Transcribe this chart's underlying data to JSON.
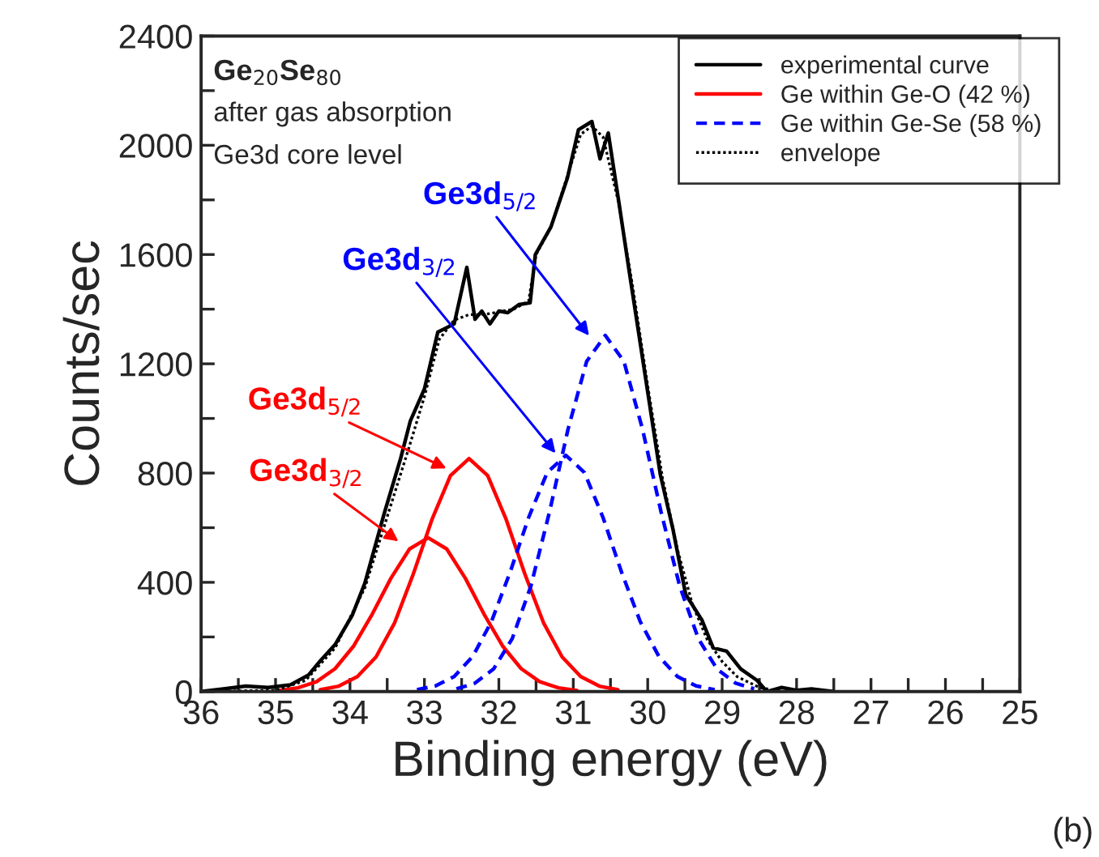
{
  "chart_data": {
    "type": "line",
    "xlabel": "Binding energy (eV)",
    "ylabel": "Counts/sec",
    "xlim": [
      36,
      25
    ],
    "xticks": [
      36,
      {
        "value": 35.5,
        "label": null
      },
      35,
      {
        "value": 34.5,
        "label": null
      },
      34,
      {
        "value": 33.5,
        "label": null
      },
      33,
      {
        "value": 32.5,
        "label": null
      },
      32,
      {
        "value": 31.5,
        "label": null
      },
      31,
      {
        "value": 30.5,
        "label": null
      },
      30,
      {
        "value": 29.5,
        "label": null
      },
      29,
      {
        "value": 28.5,
        "label": null
      },
      28,
      {
        "value": 27.5,
        "label": null
      },
      27,
      {
        "value": 26.5,
        "label": null
      },
      26,
      {
        "value": 25.5,
        "label": null
      },
      25
    ],
    "ylim": [
      0,
      2400
    ],
    "yticks": [
      0,
      {
        "value": 200,
        "label": null
      },
      400,
      {
        "value": 600,
        "label": null
      },
      800,
      {
        "value": 1000,
        "label": null
      },
      1200,
      {
        "value": 1400,
        "label": null
      },
      1600,
      {
        "value": 1800,
        "label": null
      },
      2000,
      {
        "value": 2200,
        "label": null
      },
      2400
    ],
    "grid": false,
    "legend": "top right",
    "marker": "none",
    "series": [
      {
        "name": "experimental curve",
        "color": "#000000",
        "line_style": "solid",
        "x": [
          36,
          35.7,
          35.4,
          35.1,
          34.8,
          34.56,
          34.4,
          34.2,
          33.97,
          33.8,
          33.54,
          33.32,
          33.19,
          33.0,
          32.82,
          32.6,
          32.43,
          32.32,
          32.23,
          32.12,
          32.0,
          31.88,
          31.73,
          31.58,
          31.51,
          31.3,
          31.08,
          30.93,
          30.75,
          30.64,
          30.53,
          30.38,
          30.25,
          30.05,
          29.83,
          29.66,
          29.49,
          29.27,
          29.12,
          28.94,
          28.75,
          28.53,
          28.4,
          28.2,
          28.0,
          27.8,
          27.5
        ],
        "values": [
          0,
          10,
          20,
          15,
          25,
          60,
          112,
          172,
          279,
          397,
          652,
          853,
          990,
          1108,
          1316,
          1346,
          1553,
          1363,
          1393,
          1346,
          1393,
          1387,
          1417,
          1423,
          1600,
          1701,
          1879,
          2057,
          2087,
          1950,
          2045,
          1778,
          1541,
          1186,
          794,
          593,
          356,
          261,
          160,
          148,
          83,
          41,
          0,
          15,
          5,
          10,
          0
        ]
      },
      {
        "name": "Ge within Ge-O (42 %)",
        "color": "#ff0000",
        "line_style": "solid",
        "x": [
          34.95,
          34.7,
          34.45,
          34.2,
          33.95,
          33.7,
          33.45,
          33.2,
          32.95,
          32.7,
          32.45,
          32.2,
          31.95,
          31.7,
          31.45,
          31.2,
          30.95
        ],
        "values": [
          4,
          14,
          36,
          84,
          167,
          284,
          415,
          522,
          563,
          522,
          415,
          284,
          167,
          84,
          36,
          14,
          4
        ]
      },
      {
        "color": "#ff0000",
        "line_style": "solid",
        "x": [
          34.4,
          34.15,
          33.9,
          33.65,
          33.4,
          33.15,
          32.9,
          32.65,
          32.4,
          32.15,
          31.9,
          31.65,
          31.4,
          31.15,
          30.9,
          30.65,
          30.4
        ],
        "values": [
          7,
          20,
          55,
          127,
          252,
          430,
          629,
          791,
          853,
          791,
          629,
          430,
          252,
          127,
          55,
          20,
          7
        ]
      },
      {
        "name": "Ge within Ge-Se (58 %)",
        "color": "#0000ff",
        "line_style": "dashed",
        "x": [
          33.1,
          32.85,
          32.6,
          32.35,
          32.1,
          31.85,
          31.6,
          31.35,
          31.1,
          30.85,
          30.6,
          30.35,
          30.1,
          29.85,
          29.6,
          29.35,
          29.1
        ],
        "values": [
          7,
          21,
          55,
          129,
          256,
          436,
          637,
          802,
          865,
          802,
          637,
          436,
          256,
          129,
          55,
          21,
          7
        ]
      },
      {
        "color": "#0000ff",
        "line_style": "dashed",
        "x": [
          32.57,
          32.32,
          32.07,
          31.82,
          31.57,
          31.32,
          31.07,
          30.82,
          30.57,
          30.32,
          30.07,
          29.82,
          29.57,
          29.32,
          29.07,
          28.82,
          28.57
        ],
        "values": [
          10,
          31,
          83,
          194,
          386,
          657,
          961,
          1209,
          1304,
          1209,
          961,
          657,
          386,
          194,
          83,
          31,
          10
        ]
      },
      {
        "name": "envelope",
        "color": "#000000",
        "line_style": "dotted",
        "x": [
          36,
          35,
          34.6,
          34.2,
          33.8,
          33.5,
          33.2,
          33.0,
          32.8,
          32.6,
          32.4,
          32.2,
          32.0,
          31.8,
          31.6,
          31.5,
          31.3,
          31.1,
          30.9,
          30.75,
          30.6,
          30.4,
          30.2,
          30.0,
          29.8,
          29.6,
          29.4,
          29.2,
          29.0,
          28.8,
          28.5,
          28.2
        ],
        "values": [
          0,
          5,
          40,
          160,
          380,
          640,
          900,
          1080,
          1290,
          1360,
          1380,
          1380,
          1390,
          1400,
          1430,
          1600,
          1700,
          1870,
          2040,
          2070,
          2030,
          1800,
          1480,
          1120,
          780,
          520,
          320,
          190,
          110,
          55,
          15,
          0
        ]
      }
    ],
    "annotations": [
      "Ge$_{20}$Se$_{80}$",
      "after gas absorption",
      "Ge3d core level",
      {
        "text": "Ge3d$_{5/2}$",
        "x": 30.75,
        "y": 1290
      },
      {
        "text": "Ge3d$_{3/2}$",
        "x": 31.2,
        "y": 860
      },
      {
        "text": "Ge3d$_{5/2}$",
        "x": 32.65,
        "y": 810
      },
      {
        "text": "Ge3d$_{3/2}$",
        "x": 33.3,
        "y": 540
      },
      "(b)"
    ]
  }
}
